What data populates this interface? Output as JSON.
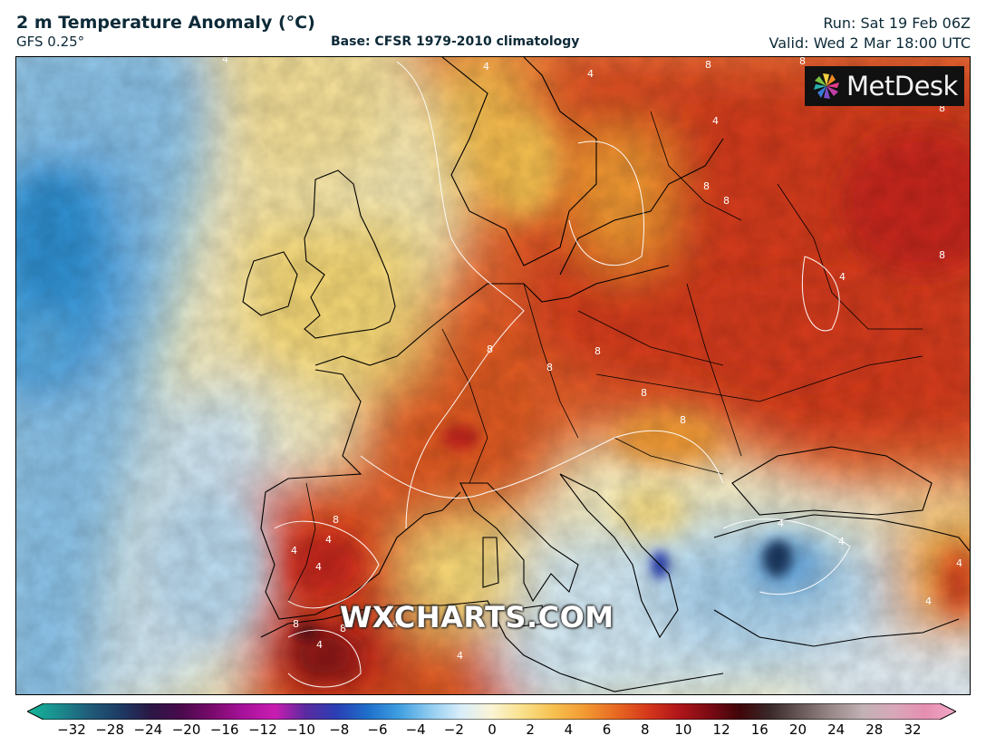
{
  "header": {
    "title": "2 m Temperature Anomaly (°C)",
    "model": "GFS 0.25°",
    "base": "Base: CFSR 1979-2010 climatology",
    "run": "Run: Sat 19 Feb 06Z",
    "valid": "Valid: Wed 2 Mar 18:00 UTC"
  },
  "logo": {
    "text": "MetDesk",
    "icon": "pinwheel-icon"
  },
  "watermark": "WXCHARTS.COM",
  "map": {
    "contour_labels": [
      "4",
      "4",
      "4",
      "8",
      "8",
      "4",
      "8",
      "8",
      "8",
      "4",
      "8",
      "8",
      "8",
      "4",
      "4",
      "4",
      "8",
      "8",
      "8",
      "8",
      "8",
      "4",
      "4",
      "4",
      "4",
      "4",
      "4",
      "4",
      "8"
    ],
    "colors": {
      "deep_cold": "#2f8fd0",
      "cold": "#8cc4ea",
      "cool": "#d4ebf7",
      "neutral": "#f8f3d6",
      "mild": "#f7d977",
      "warm": "#f2a53d",
      "hot": "#e2561c",
      "very_hot": "#c8271a",
      "extreme": "#6b0d16",
      "land_border": "#000000",
      "contour": "#ffffff"
    }
  },
  "colorbar": {
    "ticks": [
      "−32",
      "−28",
      "−24",
      "−20",
      "−16",
      "−12",
      "−10",
      "−8",
      "−6",
      "−4",
      "−2",
      "0",
      "2",
      "4",
      "6",
      "8",
      "10",
      "12",
      "16",
      "20",
      "24",
      "28",
      "32"
    ],
    "stops": [
      "#12b89a",
      "#1b8c8e",
      "#205c79",
      "#1d3b64",
      "#2b1745",
      "#4b0a4d",
      "#7b0a6e",
      "#a8129b",
      "#c91db0",
      "#5a2aa0",
      "#2a3fb4",
      "#1f6fca",
      "#3e9ee0",
      "#8fcbf0",
      "#d8eefa",
      "#fbf4d5",
      "#f9e08a",
      "#f6c04f",
      "#f29a33",
      "#e86a22",
      "#d63a1b",
      "#b3161a",
      "#7d0c14",
      "#400509",
      "#3b2a2a",
      "#6a5a5a",
      "#9a8a8a",
      "#c2b1b5",
      "#d8a7b9",
      "#e58fb0",
      "#f2a8c8"
    ]
  }
}
